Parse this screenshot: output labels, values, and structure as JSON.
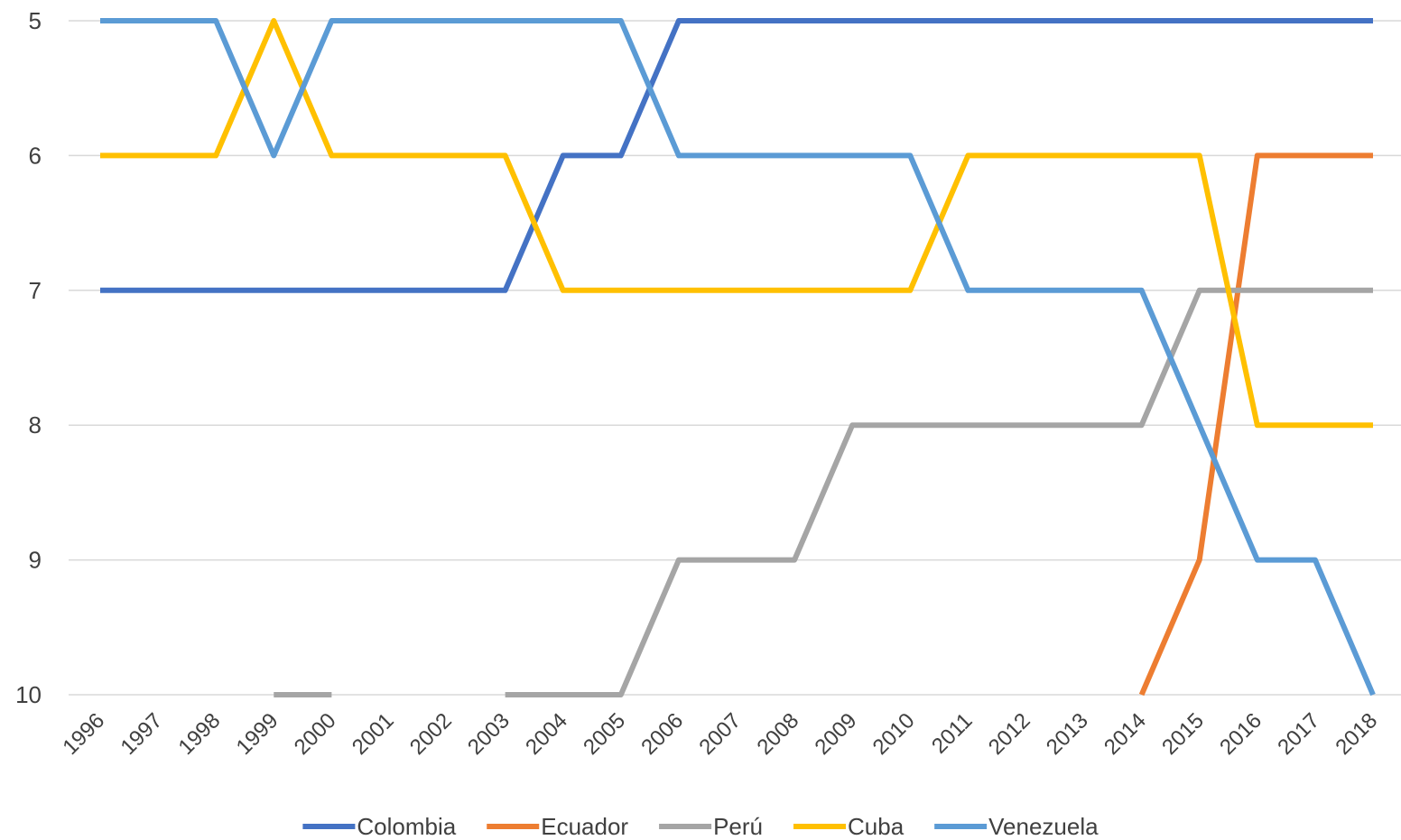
{
  "chart_data": {
    "type": "line",
    "title": "",
    "xlabel": "",
    "ylabel": "",
    "y_inverted": true,
    "ylim": [
      5,
      10
    ],
    "yticks": [
      5,
      6,
      7,
      8,
      9,
      10
    ],
    "grid": true,
    "legend_position": "bottom",
    "categories": [
      "1996",
      "1997",
      "1998",
      "1999",
      "2000",
      "2001",
      "2002",
      "2003",
      "2004",
      "2005",
      "2006",
      "2007",
      "2008",
      "2009",
      "2010",
      "2011",
      "2012",
      "2013",
      "2014",
      "2015",
      "2016",
      "2017",
      "2018"
    ],
    "series": [
      {
        "name": "Colombia",
        "color": "#4472C4",
        "values": [
          7,
          7,
          7,
          7,
          7,
          7,
          7,
          7,
          6,
          6,
          5,
          5,
          5,
          5,
          5,
          5,
          5,
          5,
          5,
          5,
          5,
          5,
          5
        ]
      },
      {
        "name": "Ecuador",
        "color": "#ED7D31",
        "values": [
          null,
          null,
          null,
          null,
          null,
          null,
          null,
          null,
          null,
          null,
          null,
          null,
          null,
          null,
          null,
          null,
          null,
          null,
          10,
          9,
          6,
          6,
          6
        ]
      },
      {
        "name": "Perú",
        "color": "#A5A5A5",
        "values": [
          null,
          null,
          null,
          10,
          10,
          null,
          null,
          10,
          10,
          10,
          9,
          9,
          9,
          8,
          8,
          8,
          8,
          8,
          8,
          7,
          7,
          7,
          7
        ]
      },
      {
        "name": "Cuba",
        "color": "#FFC000",
        "values": [
          6,
          6,
          6,
          5,
          6,
          6,
          6,
          6,
          7,
          7,
          7,
          7,
          7,
          7,
          7,
          6,
          6,
          6,
          6,
          6,
          8,
          8,
          8
        ]
      },
      {
        "name": "Venezuela",
        "color": "#5B9BD5",
        "values": [
          5,
          5,
          5,
          6,
          5,
          5,
          5,
          5,
          5,
          5,
          6,
          6,
          6,
          6,
          6,
          7,
          7,
          7,
          7,
          8,
          9,
          9,
          10
        ]
      }
    ]
  }
}
